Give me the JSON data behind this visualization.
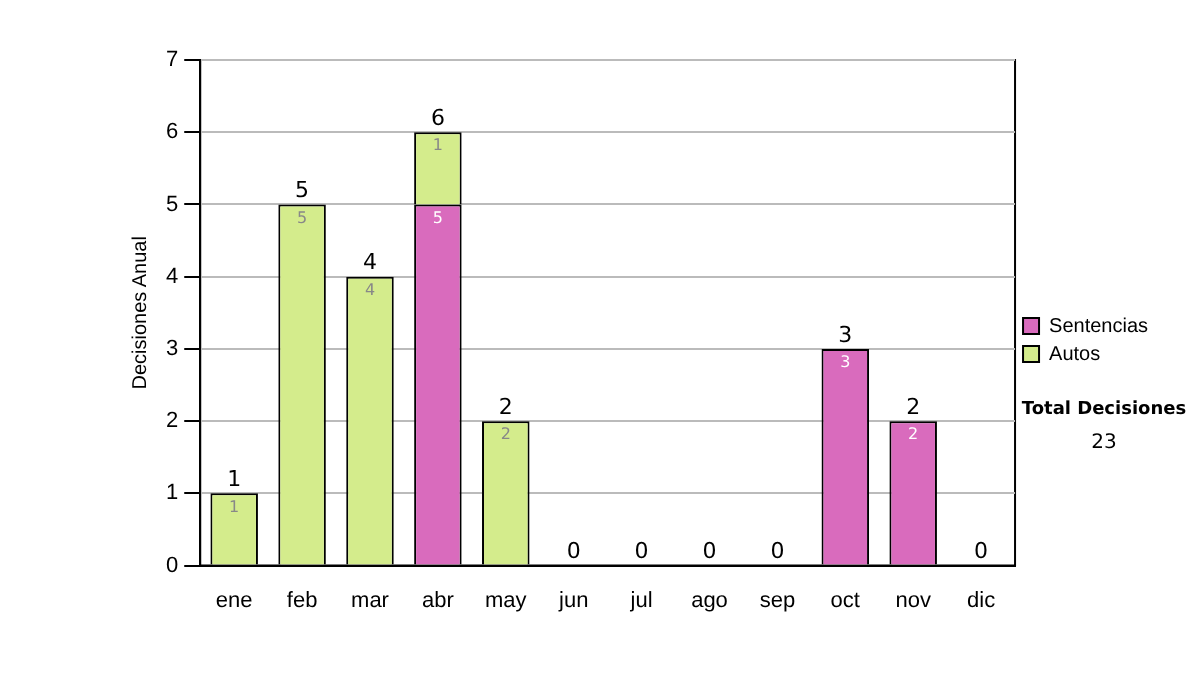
{
  "chart_data": {
    "type": "bar",
    "stacked": true,
    "ylabel": "Decisiones Anual",
    "categories": [
      "ene",
      "feb",
      "mar",
      "abr",
      "may",
      "jun",
      "jul",
      "ago",
      "sep",
      "oct",
      "nov",
      "dic"
    ],
    "series": [
      {
        "name": "Sentencias",
        "color": "#d96bbd",
        "values": [
          0,
          0,
          0,
          5,
          0,
          0,
          0,
          0,
          0,
          3,
          2,
          0
        ],
        "value_labels": [
          null,
          null,
          null,
          "5",
          null,
          null,
          null,
          null,
          null,
          "3",
          "2",
          null
        ]
      },
      {
        "name": "Autos",
        "color": "#d4ec8c",
        "values": [
          1,
          5,
          4,
          1,
          2,
          0,
          0,
          0,
          0,
          0,
          0,
          0
        ],
        "value_labels": [
          "1",
          "5",
          "4",
          "1",
          "2",
          null,
          null,
          null,
          null,
          null,
          null,
          null
        ]
      }
    ],
    "totals": [
      "1",
      "5",
      "4",
      "6",
      "2",
      "0",
      "0",
      "0",
      "0",
      "3",
      "2",
      "0"
    ],
    "ylim": [
      0,
      7
    ],
    "yticks": [
      0,
      1,
      2,
      3,
      4,
      5,
      6,
      7
    ],
    "grid": "y",
    "legend": "right",
    "annotations": [
      "Total Decisiones",
      "23"
    ]
  }
}
